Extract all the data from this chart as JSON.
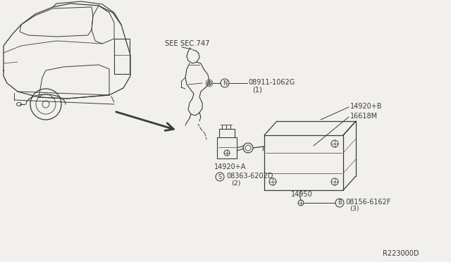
{
  "bg_color": "#f2f0ec",
  "line_color": "#3a3a3a",
  "diagram_id": "R223000D",
  "labels": {
    "see_sec": "SEE SEC.747",
    "part1_code": "08911-1062G",
    "part1_num": "(1)",
    "part1_prefix": "N",
    "part2a": "14920+A",
    "part2b": "14920+B",
    "part3_code": "08363-6202D",
    "part3_num": "(2)",
    "part3_prefix": "S",
    "part4": "16618M",
    "part5": "14950",
    "part6_code": "08156-6162F",
    "part6_num": "(3)",
    "part6_prefix": "B"
  },
  "font_label": 7.0,
  "font_small": 6.0,
  "font_id": 7.0
}
